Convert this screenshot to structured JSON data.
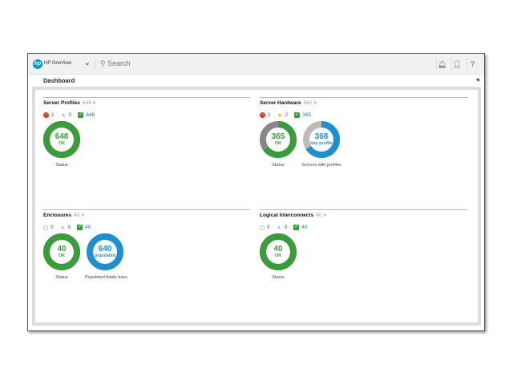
{
  "header": {
    "app_name": "HP OneView",
    "logo_text": "hp",
    "search_placeholder": "Search",
    "icons": [
      "bell-icon",
      "user-icon",
      "help-icon"
    ],
    "help_glyph": "?"
  },
  "page": {
    "title": "Dashboard"
  },
  "colors": {
    "ok": "#3a9c3a",
    "blue": "#1e90d0",
    "gray": "#888888",
    "lightgray": "#bbbbbb",
    "critical": "#d63a2a",
    "warning": "#f0b400"
  },
  "sections": {
    "server_profiles": {
      "title": "Server Profiles",
      "count": "649",
      "critical": "1",
      "warning": "0",
      "ok": "648",
      "donuts": [
        {
          "value": "648",
          "sub": "OK",
          "label": "Status",
          "fill": 0.998,
          "color": "ok",
          "rest": "critical"
        }
      ]
    },
    "server_hardware": {
      "title": "Server Hardware",
      "count": "560",
      "critical": "1",
      "warning": "2",
      "ok": "365",
      "donuts": [
        {
          "value": "365",
          "sub": "OK",
          "label": "Status",
          "fill": 0.65,
          "color": "ok",
          "rest": "gray"
        },
        {
          "value": "368",
          "sub": "has profile",
          "label": "Servers with profiles",
          "fill": 0.66,
          "color": "blue",
          "rest": "lightgray"
        }
      ]
    },
    "enclosures": {
      "title": "Enclosures",
      "count": "40",
      "unknown": "0",
      "warning": "0",
      "ok": "40",
      "donuts": [
        {
          "value": "40",
          "sub": "OK",
          "label": "Status",
          "fill": 1,
          "color": "ok",
          "rest": "gray"
        },
        {
          "value": "640",
          "sub": "populated",
          "label": "Populated blade bays",
          "fill": 1,
          "color": "blue",
          "rest": "lightgray"
        }
      ]
    },
    "logical_interconnects": {
      "title": "Logical Interconnects",
      "count": "40",
      "unknown": "0",
      "warning": "0",
      "ok": "40",
      "donuts": [
        {
          "value": "40",
          "sub": "OK",
          "label": "Status",
          "fill": 1,
          "color": "ok",
          "rest": "gray"
        }
      ]
    }
  }
}
